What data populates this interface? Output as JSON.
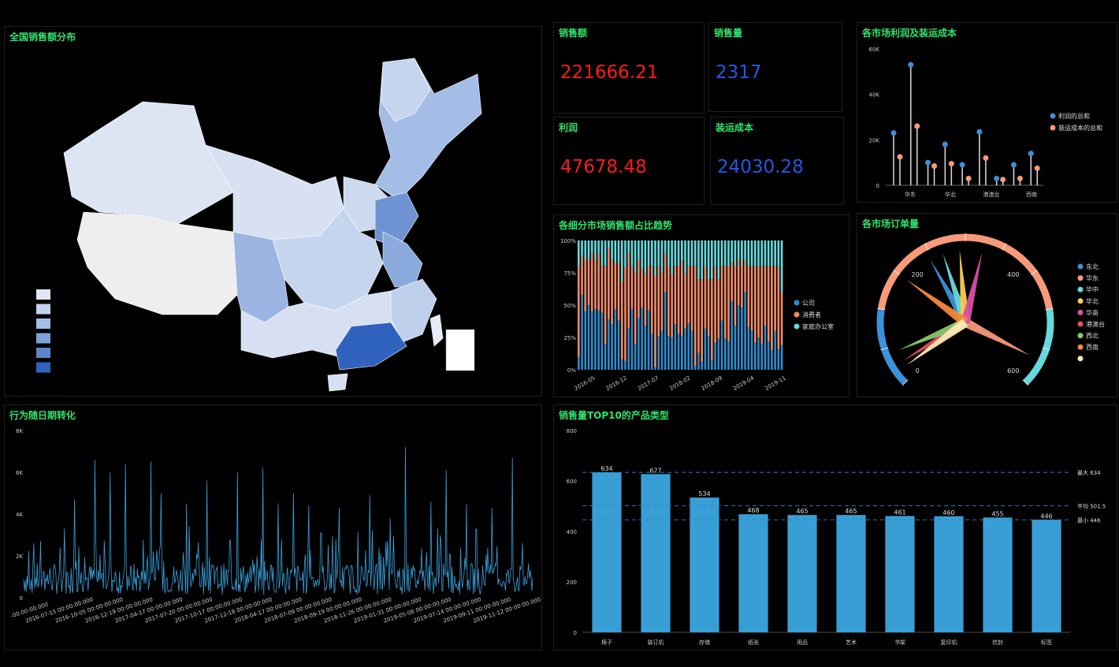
{
  "colors": {
    "title": "#2ee56b",
    "kpi_red": "#ff1a1a",
    "kpi_blue": "#2457e6",
    "bar": "#389fd6",
    "profit": "#3d8ed6",
    "shipping": "#f79a7a",
    "company": "#2f8ccc",
    "consumer": "#f08b6a",
    "home_office": "#67d9dc"
  },
  "panels": {
    "map_title": "全国销售额分布",
    "trend_title": "行为随日期转化",
    "sales_label": "销售额",
    "sales_value": "221666.21",
    "qty_label": "销售量",
    "qty_value": "2317",
    "profit_label": "利润",
    "profit_value": "47678.48",
    "shipping_label": "装运成本",
    "shipping_value": "24030.28",
    "lollipop_title": "各市场利润及装运成本",
    "stack_title": "各细分市场销售额占比趋势",
    "gauge_title": "各市场订单量",
    "top10_title": "销售量TOP10的产品类型"
  },
  "chart_data": [
    {
      "id": "map",
      "type": "map",
      "title": "全国销售额分布",
      "legend_swatches": [
        "#dfe7f5",
        "#c3d3ee",
        "#a4bde6",
        "#7fa1da",
        "#5c85cc",
        "#2f63bd"
      ]
    },
    {
      "id": "lollipop",
      "type": "scatter",
      "title": "各市场利润及装运成本",
      "y_ticks": [
        "0",
        "20K",
        "40K",
        "60K"
      ],
      "ylim": [
        0,
        60000
      ],
      "x_tick_labels": [
        "华东",
        "华北",
        "港澳台",
        "西南"
      ],
      "series": [
        {
          "name": "利润的总和",
          "values": [
            23000,
            53000,
            10000,
            18000,
            9000,
            23500,
            3000,
            9000,
            14000
          ]
        },
        {
          "name": "装运成本的总和",
          "values": [
            12500,
            26000,
            8500,
            9500,
            3000,
            12000,
            2500,
            3000,
            7500
          ]
        }
      ]
    },
    {
      "id": "stack",
      "type": "bar",
      "title": "各细分市场销售额占比趋势",
      "y_ticks": [
        "0%",
        "25%",
        "50%",
        "75%",
        "100%"
      ],
      "x_tick_labels": [
        "2016-05",
        "2016-12",
        "2017-07",
        "2018-02",
        "2018-09",
        "2019-04",
        "2019-11"
      ],
      "series": [
        {
          "name": "公司",
          "values": [
            0.1,
            0.58,
            0.45,
            0.5,
            0.45,
            0.47,
            0.46,
            0.44,
            0.2,
            0.39,
            0.35,
            0.47,
            0.38,
            0.08,
            0.07,
            0.32,
            0.47,
            0.2,
            0.4,
            0.48,
            0.34,
            0.46,
            0.28,
            0.02,
            0.26,
            0.3,
            0.6,
            0.26,
            0.25,
            0.35,
            0.28,
            0.26,
            0.32,
            0.36,
            0.3,
            0.03,
            0.13,
            0.06,
            0.32,
            0.26,
            0.07,
            0.21,
            0.24,
            0.38,
            0.24,
            0.22,
            0.53,
            0.34,
            0.5,
            0.48,
            0.6,
            0.33,
            0.3,
            0.21,
            0.25,
            0.2,
            0.34,
            0.22,
            0.15,
            0.3,
            0.16,
            0.19
          ]
        },
        {
          "name": "消费者",
          "values": [
            0.7,
            0.3,
            0.4,
            0.35,
            0.45,
            0.38,
            0.44,
            0.36,
            0.6,
            0.55,
            0.5,
            0.35,
            0.45,
            0.6,
            0.72,
            0.58,
            0.33,
            0.55,
            0.45,
            0.3,
            0.4,
            0.34,
            0.52,
            0.7,
            0.54,
            0.45,
            0.3,
            0.54,
            0.48,
            0.45,
            0.52,
            0.58,
            0.42,
            0.44,
            0.5,
            0.77,
            0.57,
            0.64,
            0.48,
            0.44,
            0.63,
            0.59,
            0.46,
            0.42,
            0.56,
            0.58,
            0.3,
            0.46,
            0.35,
            0.32,
            0.25,
            0.47,
            0.5,
            0.59,
            0.55,
            0.6,
            0.46,
            0.58,
            0.65,
            0.5,
            0.64,
            0.41
          ]
        },
        {
          "name": "家庭办公室",
          "values": [
            0.2,
            0.12,
            0.15,
            0.15,
            0.1,
            0.15,
            0.1,
            0.2,
            0.2,
            0.06,
            0.15,
            0.18,
            0.17,
            0.32,
            0.21,
            0.1,
            0.2,
            0.25,
            0.15,
            0.22,
            0.26,
            0.2,
            0.2,
            0.28,
            0.2,
            0.25,
            0.1,
            0.2,
            0.27,
            0.2,
            0.2,
            0.16,
            0.26,
            0.2,
            0.2,
            0.2,
            0.3,
            0.3,
            0.2,
            0.3,
            0.3,
            0.2,
            0.3,
            0.2,
            0.2,
            0.2,
            0.17,
            0.2,
            0.15,
            0.2,
            0.15,
            0.2,
            0.2,
            0.2,
            0.2,
            0.2,
            0.2,
            0.2,
            0.2,
            0.2,
            0.2,
            0.4
          ]
        }
      ]
    },
    {
      "id": "gauge",
      "type": "gauge",
      "title": "各市场订单量",
      "ticks": [
        "0",
        "200",
        "400",
        "600"
      ],
      "range": [
        0,
        600
      ],
      "series": [
        {
          "name": "东北",
          "value": 235,
          "color": "#3b92d8"
        },
        {
          "name": "华东",
          "value": 560,
          "color": "#f79a7a"
        },
        {
          "name": "华中",
          "value": 260,
          "color": "#67d9dc"
        },
        {
          "name": "华北",
          "value": 290,
          "color": "#f7d04a"
        },
        {
          "name": "华南",
          "value": 330,
          "color": "#d94fa8"
        },
        {
          "name": "港澳台",
          "value": 30,
          "color": "#e8505b"
        },
        {
          "name": "西北",
          "value": 50,
          "color": "#86c86a"
        },
        {
          "name": "西南",
          "value": 180,
          "color": "#f5883a"
        },
        {
          "name": "",
          "value": 20,
          "color": "#fbe8b8"
        }
      ]
    },
    {
      "id": "trend",
      "type": "line",
      "title": "行为随日期转化",
      "y_ticks": [
        "0",
        "2K",
        "4K",
        "6K",
        "8K"
      ],
      "ylim": [
        0,
        8000
      ],
      "x_tick_labels": [
        "-00:00:00.000",
        "2016-07-15 00:00:00.000",
        "2016-10-05 00:00:00.000",
        "2016-12-19 00:00:00.000",
        "2017-04-17 00:00:00.000",
        "2017-07-20 00:00:00.000",
        "2017-10-17 00:00:00.000",
        "2017-12-18 00:00:00.000",
        "2018-04-17 00:00:00.000",
        "2018-07-09 00:00:00.000",
        "2018-09-19 00:00:00.000",
        "2018-11-26 00:00:00.000",
        "2019-01-31 00:00:00.000",
        "2019-05-08 00:00:00.000",
        "2019-07-14 00:00:00.000",
        "2019-09-11 00:00:00.000",
        "2019-11-12 00:00:00.000"
      ],
      "peaks": [
        {
          "x": 0.02,
          "y": 2600
        },
        {
          "x": 0.08,
          "y": 3300
        },
        {
          "x": 0.1,
          "y": 4700
        },
        {
          "x": 0.14,
          "y": 6600
        },
        {
          "x": 0.17,
          "y": 6000
        },
        {
          "x": 0.2,
          "y": 6400
        },
        {
          "x": 0.25,
          "y": 6500
        },
        {
          "x": 0.27,
          "y": 5000
        },
        {
          "x": 0.32,
          "y": 4500
        },
        {
          "x": 0.36,
          "y": 5600
        },
        {
          "x": 0.42,
          "y": 6000
        },
        {
          "x": 0.47,
          "y": 6200
        },
        {
          "x": 0.5,
          "y": 4500
        },
        {
          "x": 0.53,
          "y": 5000
        },
        {
          "x": 0.56,
          "y": 4400
        },
        {
          "x": 0.62,
          "y": 4300
        },
        {
          "x": 0.68,
          "y": 4900
        },
        {
          "x": 0.72,
          "y": 3800
        },
        {
          "x": 0.75,
          "y": 7200
        },
        {
          "x": 0.8,
          "y": 4600
        },
        {
          "x": 0.83,
          "y": 6100
        },
        {
          "x": 0.87,
          "y": 4500
        },
        {
          "x": 0.92,
          "y": 4300
        },
        {
          "x": 0.96,
          "y": 6700
        },
        {
          "x": 0.98,
          "y": 2600
        }
      ]
    },
    {
      "id": "top10",
      "type": "bar",
      "title": "销售量TOP10的产品类型",
      "categories": [
        "椅子",
        "装订机",
        "存储",
        "纸张",
        "用品",
        "艺术",
        "书架",
        "复印机",
        "信封",
        "标签"
      ],
      "values": [
        634,
        627,
        534,
        468,
        465,
        465,
        461,
        460,
        455,
        446
      ],
      "y_ticks": [
        "0",
        "200",
        "400",
        "600",
        "800"
      ],
      "ylim": [
        0,
        800
      ],
      "marklines": [
        {
          "label": "最大 634",
          "value": 634
        },
        {
          "label": "平均 501.5",
          "value": 501.5
        },
        {
          "label": "最小 446",
          "value": 446
        }
      ]
    }
  ]
}
